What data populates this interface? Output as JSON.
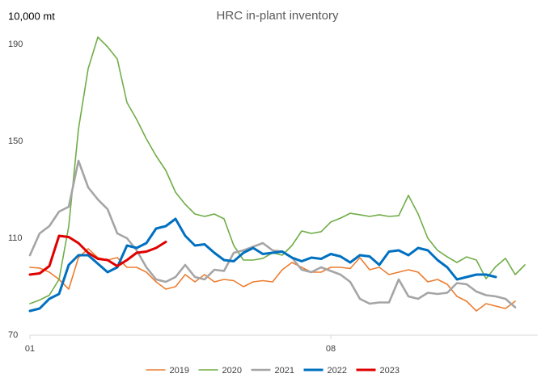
{
  "chart_data": {
    "type": "line",
    "title": "HRC in-plant inventory",
    "y_label": "10,000 mt",
    "categories": [
      "01",
      null,
      null,
      null,
      null,
      null,
      null,
      null,
      null,
      null,
      null,
      null,
      null,
      null,
      null,
      null,
      null,
      null,
      null,
      null,
      null,
      null,
      null,
      null,
      null,
      null,
      null,
      null,
      null,
      null,
      null,
      "08",
      null,
      null,
      null,
      null,
      null,
      null,
      null,
      null,
      null,
      null,
      null,
      null,
      null,
      null,
      null,
      null,
      null,
      null,
      null,
      null
    ],
    "ylim": [
      70,
      195
    ],
    "yticks": [
      70,
      110,
      150,
      190
    ],
    "grid": false,
    "legend": "bottom",
    "series": [
      {
        "name": "2019",
        "color": "#ed7d31",
        "values": [
          98,
          97.7,
          96,
          93,
          89,
          102,
          105.7,
          102,
          101,
          102,
          98,
          98,
          96,
          92,
          89,
          90,
          95,
          92,
          95,
          92,
          93,
          92.5,
          90,
          92,
          92.5,
          92,
          97,
          100,
          98,
          96,
          96,
          98,
          98,
          97.5,
          102,
          97,
          98,
          95,
          96,
          97,
          96,
          92,
          93,
          91,
          86,
          84,
          80,
          83,
          82,
          81,
          84,
          null
        ]
      },
      {
        "name": "2020",
        "color": "#70ad47",
        "values": [
          83,
          84.5,
          86.5,
          93,
          115,
          155,
          180,
          193,
          189,
          184,
          166,
          159,
          151,
          144,
          138,
          129,
          124,
          120,
          119,
          120,
          118,
          107,
          101,
          101,
          101.7,
          104,
          103,
          107,
          113,
          112,
          112.7,
          116.7,
          118.3,
          120.3,
          119.7,
          119,
          119.7,
          119,
          119.3,
          127.7,
          120,
          110,
          105,
          102.3,
          100,
          102.3,
          101,
          93.3,
          98.3,
          101.7,
          95,
          99
        ]
      },
      {
        "name": "2021",
        "color": "#a5a5a5",
        "values": [
          103,
          112,
          115,
          121,
          123,
          142,
          131,
          126,
          122,
          112,
          110,
          105,
          98,
          93,
          92,
          94,
          99,
          94,
          93,
          97,
          96.5,
          104,
          105,
          106.5,
          108,
          105,
          104.5,
          102,
          97,
          96,
          98,
          96.5,
          95,
          92,
          85,
          83,
          83.5,
          83.5,
          93,
          86,
          85,
          87.5,
          87,
          87.5,
          91.5,
          91,
          88,
          86.5,
          86,
          85,
          81.5,
          null
        ]
      },
      {
        "name": "2022",
        "color": "#0070c0",
        "values": [
          80,
          81,
          85,
          87,
          99,
          103,
          103,
          99.5,
          96,
          98,
          107,
          106,
          108,
          114,
          115,
          118,
          111,
          107,
          107.5,
          104,
          101,
          100.5,
          104,
          106,
          103.5,
          104,
          104.5,
          102,
          100.5,
          102,
          101.5,
          103.5,
          102.5,
          100,
          103,
          102.5,
          99,
          104.5,
          105,
          103,
          106,
          105,
          101,
          98,
          93,
          94,
          95,
          95,
          94,
          null,
          null,
          null
        ]
      },
      {
        "name": "2023",
        "color": "#e00000",
        "values": [
          95,
          95.5,
          98.5,
          111,
          110.5,
          108,
          104,
          101.5,
          101,
          98.5,
          101,
          104,
          104.5,
          106,
          108.5,
          null,
          null,
          null,
          null,
          null,
          null,
          null,
          null,
          null,
          null,
          null,
          null,
          null,
          null,
          null,
          null,
          null,
          null,
          null,
          null,
          null,
          null,
          null,
          null,
          null,
          null,
          null,
          null,
          null,
          null,
          null,
          null,
          null,
          null,
          null,
          null,
          null
        ]
      }
    ]
  }
}
